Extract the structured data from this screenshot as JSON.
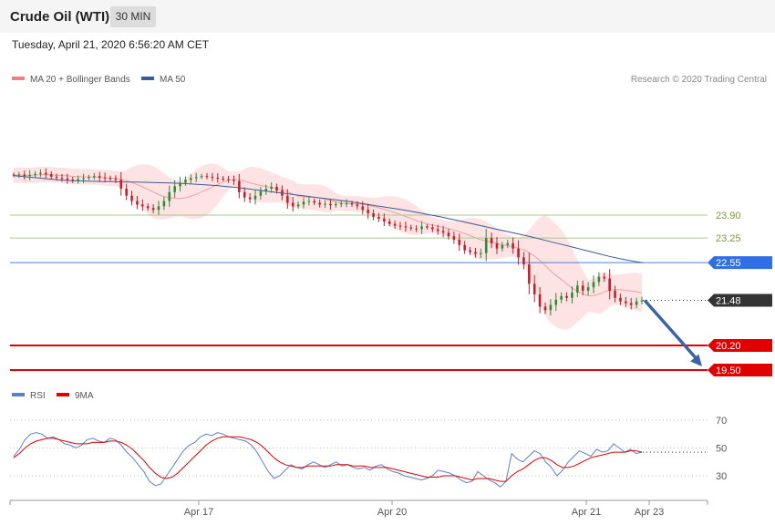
{
  "header": {
    "title": "Crude Oil (WTI)",
    "timeframe": "30 MIN"
  },
  "datetime": "Tuesday, April 21, 2020 6:56:20 AM CET",
  "attribution": "Research © 2020 Trading Central",
  "colors": {
    "bollinger": "#f08080",
    "ma50": "#3b5a9a",
    "rsi": "#5b7fcf",
    "rsi_ma": "#e00000",
    "up": "#2e8b3a",
    "down": "#c0202a",
    "resistance": "#a9c98a",
    "pivot": "#4a7fe0",
    "support": "#e00000",
    "arrow": "#3b64a8",
    "current": "#333333"
  },
  "chart_data": [
    {
      "type": "candlestick",
      "legend": [
        {
          "label": "MA 20 + Bollinger Bands",
          "color": "#f08080"
        },
        {
          "label": "MA 50",
          "color": "#3b5a9a"
        }
      ],
      "x_ticks": [
        "Apr 17",
        "Apr 20",
        "Apr 21",
        "Apr 23"
      ],
      "ylim": [
        19.1,
        25.5
      ],
      "close_series": [
        25.03,
        25.05,
        25.01,
        25.04,
        25.07,
        25.1,
        25.06,
        24.99,
        24.96,
        24.94,
        24.91,
        24.88,
        24.92,
        24.95,
        24.98,
        25.01,
        24.97,
        24.95,
        24.93,
        24.9,
        24.65,
        24.45,
        24.3,
        24.2,
        24.15,
        24.1,
        24.05,
        24.15,
        24.3,
        24.55,
        24.72,
        24.82,
        24.9,
        24.95,
        24.98,
        25.01,
        24.99,
        24.96,
        24.94,
        24.92,
        24.9,
        24.87,
        24.55,
        24.4,
        24.35,
        24.45,
        24.58,
        24.65,
        24.7,
        24.6,
        24.45,
        24.25,
        24.15,
        24.2,
        24.28,
        24.3,
        24.25,
        24.2,
        24.22,
        24.18,
        24.21,
        24.23,
        24.24,
        24.2,
        24.15,
        24.05,
        23.95,
        23.85,
        23.8,
        23.72,
        23.65,
        23.6,
        23.58,
        23.55,
        23.52,
        23.5,
        23.58,
        23.55,
        23.5,
        23.45,
        23.4,
        23.3,
        23.2,
        23.05,
        22.9,
        22.85,
        22.8,
        22.82,
        23.25,
        23.1,
        22.95,
        23.05,
        23.1,
        22.95,
        22.7,
        22.5,
        21.95,
        21.65,
        21.3,
        21.2,
        21.35,
        21.5,
        21.6,
        21.55,
        21.7,
        21.9,
        21.75,
        21.85,
        22.0,
        22.15,
        22.1,
        21.75,
        21.55,
        21.45,
        21.4,
        21.35,
        21.45,
        21.48
      ],
      "ma50_series": [
        25.02,
        24.99,
        24.96,
        24.93,
        24.9,
        24.88,
        24.87,
        24.86,
        24.85,
        24.85,
        24.84,
        24.84,
        24.83,
        24.82,
        24.81,
        24.8,
        24.78,
        24.76,
        24.74,
        24.71,
        24.68,
        24.64,
        24.6,
        24.56,
        24.52,
        24.48,
        24.44,
        24.4,
        24.36,
        24.32,
        24.28,
        24.23,
        24.18,
        24.13,
        24.08,
        24.03,
        23.97,
        23.91,
        23.85,
        23.78,
        23.71,
        23.64,
        23.57,
        23.5,
        23.43,
        23.36,
        23.29,
        23.21,
        23.13,
        23.05,
        22.97,
        22.89,
        22.81,
        22.73,
        22.66,
        22.6,
        22.55
      ],
      "horizontal_levels": [
        {
          "label": "23.90",
          "value": 23.9,
          "role": "resistance"
        },
        {
          "label": "23.25",
          "value": 23.25,
          "role": "resistance"
        },
        {
          "label": "22.55",
          "value": 22.55,
          "role": "pivot"
        },
        {
          "label": "21.48",
          "value": 21.48,
          "role": "last"
        },
        {
          "label": "20.20",
          "value": 20.2,
          "role": "support"
        },
        {
          "label": "19.50",
          "value": 19.5,
          "role": "support"
        }
      ],
      "projection": {
        "from": 21.48,
        "to": 19.5,
        "direction": "down"
      }
    },
    {
      "type": "line",
      "legend": [
        {
          "label": "RSI",
          "color": "#5b7fcf"
        },
        {
          "label": "9MA",
          "color": "#e00000"
        }
      ],
      "y_ticks": [
        "70",
        "50",
        "30"
      ],
      "ylim": [
        20,
        80
      ],
      "rsi_series": [
        44,
        49,
        56,
        60,
        61,
        60,
        57,
        58,
        56,
        53,
        52,
        50,
        52,
        56,
        57,
        55,
        54,
        57,
        56,
        52,
        47,
        43,
        38,
        33,
        26,
        23,
        24,
        30,
        36,
        42,
        48,
        52,
        54,
        58,
        60,
        59,
        61,
        60,
        58,
        57,
        56,
        55,
        52,
        47,
        40,
        33,
        28,
        30,
        34,
        38,
        36,
        35,
        38,
        40,
        38,
        36,
        38,
        40,
        37,
        38,
        36,
        35,
        36,
        34,
        37,
        38,
        35,
        33,
        32,
        30,
        29,
        28,
        27,
        28,
        30,
        34,
        33,
        32,
        30,
        27,
        25,
        26,
        33,
        30,
        27,
        25,
        22,
        26,
        46,
        42,
        40,
        44,
        48,
        46,
        40,
        36,
        30,
        34,
        40,
        44,
        48,
        46,
        44,
        49,
        47,
        48,
        53,
        50,
        47,
        49,
        46,
        47
      ],
      "rsi_ma_series": [
        43,
        46,
        50,
        53,
        55,
        56,
        57,
        57,
        56,
        55,
        54,
        53,
        53,
        53,
        54,
        54,
        54,
        55,
        55,
        54,
        52,
        49,
        45,
        41,
        36,
        32,
        29,
        28,
        29,
        32,
        36,
        40,
        44,
        48,
        52,
        55,
        57,
        58,
        58,
        58,
        58,
        57,
        56,
        54,
        51,
        47,
        43,
        40,
        38,
        37,
        36,
        36,
        37,
        37,
        37,
        37,
        37,
        38,
        38,
        38,
        37,
        37,
        37,
        36,
        36,
        36,
        36,
        35,
        34,
        33,
        32,
        31,
        30,
        29,
        29,
        29,
        30,
        30,
        30,
        29,
        28,
        27,
        28,
        28,
        28,
        27,
        26,
        26,
        30,
        33,
        35,
        38,
        41,
        43,
        43,
        41,
        38,
        36,
        36,
        37,
        39,
        41,
        43,
        44,
        45,
        46,
        47,
        47,
        47,
        48,
        48,
        47
      ]
    }
  ]
}
